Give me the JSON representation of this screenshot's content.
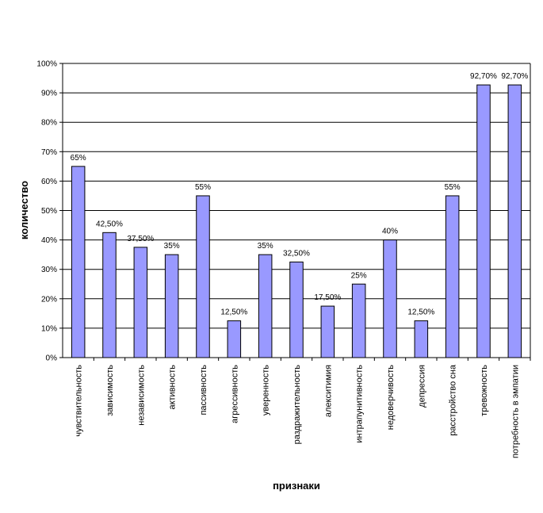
{
  "chart_data": {
    "type": "bar",
    "title": "",
    "xlabel": "признаки",
    "ylabel": "количество",
    "ylim": [
      0,
      100
    ],
    "ytick_step": 10,
    "ytick_labels": [
      "0%",
      "10%",
      "20%",
      "30%",
      "40%",
      "50%",
      "60%",
      "70%",
      "80%",
      "90%",
      "100%"
    ],
    "grid": true,
    "legend": "none",
    "bar_color": "#9999FF",
    "categories": [
      "чувствительность",
      "зависимость",
      "независимость",
      "активность",
      "пассивность",
      "агрессивность",
      "уверенность",
      "раздражительность",
      "алекситимия",
      "интрапунитивность",
      "недоверчивость",
      "депрессия",
      "расстройство сна",
      "тревожность",
      "потребность в эмпатии"
    ],
    "values": [
      65,
      42.5,
      37.5,
      35,
      55,
      12.5,
      35,
      32.5,
      17.5,
      25,
      40,
      12.5,
      55,
      92.7,
      92.7
    ],
    "data_labels": [
      "65%",
      "42,50%",
      "37,50%",
      "35%",
      "55%",
      "12,50%",
      "35%",
      "32,50%",
      "17,50%",
      "25%",
      "40%",
      "12,50%",
      "55%",
      "92,70%",
      "92,70%"
    ]
  }
}
